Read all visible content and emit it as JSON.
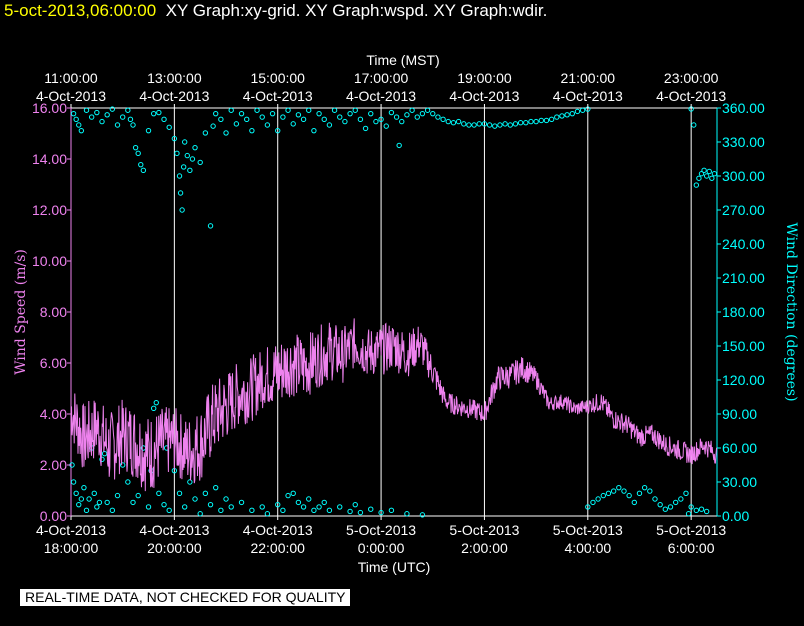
{
  "header": {
    "timestamp": "5-oct-2013,06:00:00",
    "graphs": "XY Graph:xy-grid.  XY Graph:wspd.  XY Graph:wdir."
  },
  "notice": "REAL-TIME DATA, NOT CHECKED FOR QUALITY",
  "colors": {
    "speed": "#ee82ee",
    "direction": "#00ffff",
    "header_ts": "#ffff00",
    "text": "#ffffff"
  },
  "chart_data": {
    "type": "line",
    "title_top": "Time (MST)",
    "xlabel": "Time (UTC)",
    "ylabel_left": "Wind Speed (m/s)",
    "ylabel_right": "Wind Direction (degrees)",
    "x_range_hours": [
      0,
      12.5
    ],
    "left_ylim": [
      0,
      16
    ],
    "right_ylim": [
      0,
      360
    ],
    "left_ticks": [
      "0.00",
      "2.00",
      "4.00",
      "6.00",
      "8.00",
      "10.00",
      "12.00",
      "14.00",
      "16.00"
    ],
    "right_ticks": [
      "0.00",
      "30.00",
      "60.00",
      "90.00",
      "120.00",
      "150.00",
      "180.00",
      "210.00",
      "240.00",
      "270.00",
      "300.00",
      "330.00",
      "360.00"
    ],
    "top_ticks": [
      {
        "h": 0,
        "time": "11:00:00",
        "date": "4-Oct-2013"
      },
      {
        "h": 2,
        "time": "13:00:00",
        "date": "4-Oct-2013"
      },
      {
        "h": 4,
        "time": "15:00:00",
        "date": "4-Oct-2013"
      },
      {
        "h": 6,
        "time": "17:00:00",
        "date": "4-Oct-2013"
      },
      {
        "h": 8,
        "time": "19:00:00",
        "date": "4-Oct-2013"
      },
      {
        "h": 10,
        "time": "21:00:00",
        "date": "4-Oct-2013"
      },
      {
        "h": 12,
        "time": "23:00:00",
        "date": "4-Oct-2013"
      }
    ],
    "bottom_ticks": [
      {
        "h": 0,
        "date": "4-Oct-2013",
        "time": "18:00:00"
      },
      {
        "h": 2,
        "date": "4-Oct-2013",
        "time": "20:00:00"
      },
      {
        "h": 4,
        "date": "4-Oct-2013",
        "time": "22:00:00"
      },
      {
        "h": 6,
        "date": "5-Oct-2013",
        "time": "0:00:00"
      },
      {
        "h": 8,
        "date": "5-Oct-2013",
        "time": "2:00:00"
      },
      {
        "h": 10,
        "date": "5-Oct-2013",
        "time": "4:00:00"
      },
      {
        "h": 12,
        "date": "5-Oct-2013",
        "time": "6:00:00"
      }
    ],
    "wind_speed": {
      "name": "wspd",
      "x": [
        0,
        0.25,
        0.5,
        0.75,
        1,
        1.25,
        1.5,
        1.75,
        2,
        2.25,
        2.5,
        2.75,
        3,
        3.25,
        3.5,
        3.75,
        4,
        4.25,
        4.5,
        4.75,
        5,
        5.25,
        5.5,
        5.75,
        6,
        6.25,
        6.5,
        6.75,
        7,
        7.25,
        7.5,
        7.75,
        8,
        8.25,
        8.5,
        8.75,
        9,
        9.25,
        9.5,
        9.75,
        10,
        10.25,
        10.5,
        10.75,
        11,
        11.25,
        11.5,
        11.75,
        12,
        12.25,
        12.5
      ],
      "values": [
        4.2,
        3.0,
        3.5,
        2.6,
        3.2,
        2.9,
        2.4,
        2.8,
        3.0,
        2.5,
        2.8,
        3.8,
        4.3,
        4.8,
        5.0,
        5.5,
        5.6,
        6.0,
        5.8,
        6.2,
        6.5,
        6.3,
        6.8,
        6.4,
        6.5,
        6.7,
        6.3,
        6.8,
        5.7,
        4.5,
        4.3,
        4.2,
        4.0,
        5.4,
        5.5,
        5.8,
        5.4,
        4.4,
        4.5,
        4.2,
        4.3,
        4.5,
        3.8,
        3.6,
        3.1,
        3.2,
        2.8,
        2.6,
        2.4,
        2.8,
        2.4
      ],
      "noise": [
        1.2,
        1.4,
        1.3,
        1.5,
        1.4,
        1.5,
        1.6,
        1.5,
        1.3,
        1.4,
        1.5,
        1.5,
        1.4,
        1.3,
        1.3,
        1.2,
        1.4,
        1.3,
        1.3,
        1.2,
        1.2,
        1.1,
        1.0,
        1.0,
        1.0,
        1.0,
        0.9,
        0.8,
        0.6,
        0.4,
        0.4,
        0.4,
        0.4,
        0.5,
        0.5,
        0.5,
        0.4,
        0.3,
        0.3,
        0.3,
        0.3,
        0.4,
        0.4,
        0.4,
        0.4,
        0.4,
        0.4,
        0.4,
        0.4,
        0.4,
        0.4
      ]
    },
    "wind_direction": {
      "name": "wdir",
      "points": [
        [
          0.05,
          355
        ],
        [
          0.1,
          350
        ],
        [
          0.15,
          345
        ],
        [
          0.2,
          340
        ],
        [
          0.3,
          358
        ],
        [
          0.4,
          352
        ],
        [
          0.5,
          356
        ],
        [
          0.6,
          348
        ],
        [
          0.7,
          354
        ],
        [
          0.8,
          359
        ],
        [
          0.9,
          345
        ],
        [
          1.0,
          352
        ],
        [
          1.1,
          358
        ],
        [
          1.15,
          350
        ],
        [
          1.2,
          345
        ],
        [
          1.25,
          325
        ],
        [
          1.3,
          320
        ],
        [
          1.35,
          310
        ],
        [
          1.4,
          305
        ],
        [
          1.5,
          340
        ],
        [
          1.6,
          355
        ],
        [
          1.7,
          356
        ],
        [
          1.8,
          350
        ],
        [
          1.9,
          343
        ],
        [
          2.0,
          333
        ],
        [
          2.05,
          320
        ],
        [
          2.1,
          300
        ],
        [
          2.12,
          285
        ],
        [
          2.15,
          270
        ],
        [
          2.18,
          308
        ],
        [
          2.2,
          330
        ],
        [
          2.25,
          318
        ],
        [
          2.3,
          305
        ],
        [
          2.35,
          315
        ],
        [
          2.4,
          325
        ],
        [
          2.5,
          312
        ],
        [
          2.6,
          338
        ],
        [
          2.7,
          256
        ],
        [
          2.75,
          344
        ],
        [
          2.8,
          355
        ],
        [
          2.9,
          350
        ],
        [
          3.0,
          338
        ],
        [
          3.1,
          358
        ],
        [
          3.2,
          346
        ],
        [
          3.3,
          355
        ],
        [
          3.4,
          350
        ],
        [
          3.5,
          340
        ],
        [
          3.6,
          358
        ],
        [
          3.7,
          352
        ],
        [
          3.8,
          345
        ],
        [
          3.9,
          355
        ],
        [
          4.0,
          340
        ],
        [
          4.1,
          352
        ],
        [
          4.2,
          358
        ],
        [
          4.3,
          346
        ],
        [
          4.4,
          354
        ],
        [
          4.5,
          350
        ],
        [
          4.6,
          358
        ],
        [
          4.7,
          340
        ],
        [
          4.8,
          355
        ],
        [
          4.9,
          350
        ],
        [
          5.0,
          345
        ],
        [
          5.1,
          358
        ],
        [
          5.2,
          352
        ],
        [
          5.3,
          348
        ],
        [
          5.4,
          355
        ],
        [
          5.5,
          358
        ],
        [
          5.6,
          350
        ],
        [
          5.7,
          342
        ],
        [
          5.8,
          355
        ],
        [
          5.9,
          348
        ],
        [
          6.0,
          350
        ],
        [
          6.1,
          344
        ],
        [
          6.2,
          356
        ],
        [
          6.3,
          352
        ],
        [
          6.35,
          327
        ],
        [
          6.4,
          348
        ],
        [
          6.5,
          354
        ],
        [
          6.6,
          358
        ],
        [
          6.7,
          352
        ],
        [
          6.8,
          355
        ],
        [
          6.9,
          358
        ],
        [
          7.0,
          355
        ],
        [
          7.1,
          352
        ],
        [
          7.2,
          350
        ],
        [
          7.3,
          348
        ],
        [
          7.4,
          347
        ],
        [
          7.5,
          348
        ],
        [
          7.6,
          346
        ],
        [
          7.7,
          345
        ],
        [
          7.8,
          345
        ],
        [
          7.9,
          346
        ],
        [
          8.0,
          346
        ],
        [
          8.1,
          345
        ],
        [
          8.2,
          344
        ],
        [
          8.3,
          345
        ],
        [
          8.4,
          346
        ],
        [
          8.5,
          345
        ],
        [
          8.6,
          346
        ],
        [
          8.7,
          347
        ],
        [
          8.8,
          347
        ],
        [
          8.9,
          348
        ],
        [
          9.0,
          348
        ],
        [
          9.1,
          349
        ],
        [
          9.2,
          349
        ],
        [
          9.3,
          350
        ],
        [
          9.4,
          352
        ],
        [
          9.5,
          353
        ],
        [
          9.6,
          354
        ],
        [
          9.7,
          355
        ],
        [
          9.8,
          357
        ],
        [
          9.9,
          358
        ],
        [
          10.0,
          359
        ],
        [
          12.0,
          360
        ],
        [
          12.05,
          345
        ],
        [
          12.1,
          292
        ],
        [
          12.15,
          298
        ],
        [
          12.2,
          302
        ],
        [
          12.25,
          305
        ],
        [
          12.3,
          300
        ],
        [
          12.35,
          304
        ],
        [
          12.4,
          298
        ],
        [
          12.45,
          302
        ],
        [
          0.02,
          45
        ],
        [
          0.05,
          30
        ],
        [
          0.1,
          20
        ],
        [
          0.15,
          10
        ],
        [
          0.2,
          15
        ],
        [
          0.25,
          25
        ],
        [
          0.3,
          5
        ],
        [
          0.35,
          15
        ],
        [
          0.4,
          60
        ],
        [
          0.45,
          20
        ],
        [
          0.5,
          8
        ],
        [
          0.55,
          12
        ],
        [
          0.6,
          50
        ],
        [
          0.65,
          55
        ],
        [
          0.7,
          12
        ],
        [
          0.8,
          5
        ],
        [
          0.9,
          18
        ],
        [
          1.0,
          45
        ],
        [
          1.1,
          30
        ],
        [
          1.2,
          12
        ],
        [
          1.3,
          18
        ],
        [
          1.4,
          60
        ],
        [
          1.5,
          8
        ],
        [
          1.55,
          40
        ],
        [
          1.6,
          95
        ],
        [
          1.65,
          100
        ],
        [
          1.7,
          20
        ],
        [
          1.8,
          10
        ],
        [
          1.85,
          60
        ],
        [
          1.9,
          5
        ],
        [
          2.0,
          40
        ],
        [
          2.1,
          20
        ],
        [
          2.2,
          8
        ],
        [
          2.3,
          30
        ],
        [
          2.4,
          15
        ],
        [
          2.5,
          2
        ],
        [
          2.6,
          20
        ],
        [
          2.7,
          10
        ],
        [
          2.8,
          25
        ],
        [
          2.9,
          5
        ],
        [
          3.0,
          15
        ],
        [
          3.1,
          8
        ],
        [
          3.3,
          12
        ],
        [
          3.5,
          5
        ],
        [
          3.7,
          8
        ],
        [
          3.8,
          2
        ],
        [
          4.0,
          10
        ],
        [
          4.1,
          5
        ],
        [
          4.2,
          18
        ],
        [
          4.3,
          20
        ],
        [
          4.4,
          12
        ],
        [
          4.5,
          8
        ],
        [
          4.6,
          15
        ],
        [
          4.7,
          5
        ],
        [
          4.8,
          8
        ],
        [
          4.9,
          12
        ],
        [
          5.0,
          5
        ],
        [
          5.2,
          8
        ],
        [
          5.4,
          4
        ],
        [
          5.5,
          10
        ],
        [
          5.6,
          3
        ],
        [
          5.8,
          6
        ],
        [
          6.0,
          3
        ],
        [
          6.2,
          5
        ],
        [
          6.5,
          2
        ],
        [
          6.8,
          1
        ],
        [
          10.0,
          8
        ],
        [
          10.1,
          12
        ],
        [
          10.2,
          15
        ],
        [
          10.3,
          18
        ],
        [
          10.4,
          20
        ],
        [
          10.5,
          22
        ],
        [
          10.6,
          25
        ],
        [
          10.7,
          22
        ],
        [
          10.8,
          18
        ],
        [
          10.9,
          12
        ],
        [
          11.0,
          20
        ],
        [
          11.1,
          25
        ],
        [
          11.2,
          22
        ],
        [
          11.3,
          15
        ],
        [
          11.4,
          10
        ],
        [
          11.5,
          6
        ],
        [
          11.6,
          8
        ],
        [
          11.7,
          12
        ],
        [
          11.8,
          15
        ],
        [
          11.9,
          20
        ],
        [
          11.95,
          2
        ],
        [
          12.0,
          8
        ],
        [
          12.1,
          5
        ],
        [
          12.2,
          6
        ],
        [
          12.3,
          4
        ]
      ]
    }
  }
}
